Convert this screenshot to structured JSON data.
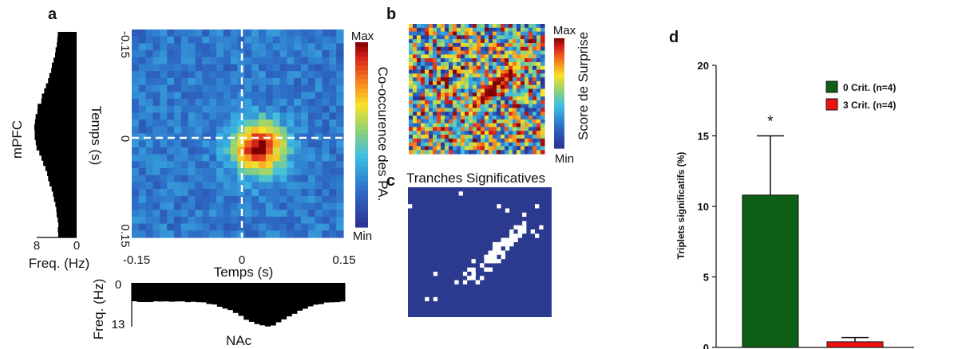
{
  "chart_data": [
    {
      "panel": "a",
      "type": "heatmap",
      "xlabel": "Temps (s)",
      "ylabel": "Temps (s)",
      "xlim": [
        -0.15,
        0.15
      ],
      "ylim": [
        -0.15,
        0.15
      ],
      "x_ticks": [
        "-0.15",
        "0",
        "0.15"
      ],
      "y_ticks": [
        "-0.15",
        "0",
        "0.15"
      ],
      "colorbar": {
        "label": "Co-occurence des PA.",
        "max_label": "Max",
        "min_label": "Min"
      },
      "hotspot": {
        "x": 0.03,
        "y": 0.02
      },
      "marginals": {
        "left": {
          "name": "mPFC",
          "xlabel": "Freq. (Hz)",
          "ticks": [
            "8",
            "0"
          ],
          "range": [
            0,
            8
          ]
        },
        "bottom": {
          "name": "NAc",
          "ylabel": "Freq. (Hz)",
          "ticks": [
            "0",
            "13"
          ],
          "range": [
            0,
            13
          ]
        }
      }
    },
    {
      "panel": "b",
      "type": "heatmap",
      "colorbar": {
        "label": "Score de Surprise",
        "max_label": "Max",
        "min_label": "Min"
      }
    },
    {
      "panel": "c",
      "type": "heatmap",
      "title": "Tranches Significatives",
      "colors": {
        "background": "#2b3a8f",
        "significant": "#ffffff"
      }
    },
    {
      "panel": "d",
      "type": "bar",
      "ylabel": "Triplets significatifs (%)",
      "ylim": [
        0,
        20
      ],
      "yticks": [
        0,
        5,
        10,
        15,
        20
      ],
      "categories": [
        "0 Crit. (n=4)",
        "3 Crit. (n=4)"
      ],
      "values": [
        10.8,
        0.4
      ],
      "errors": [
        4.2,
        0.3
      ],
      "colors": [
        "#0f5e15",
        "#ee1111"
      ],
      "annotation": "*"
    }
  ]
}
